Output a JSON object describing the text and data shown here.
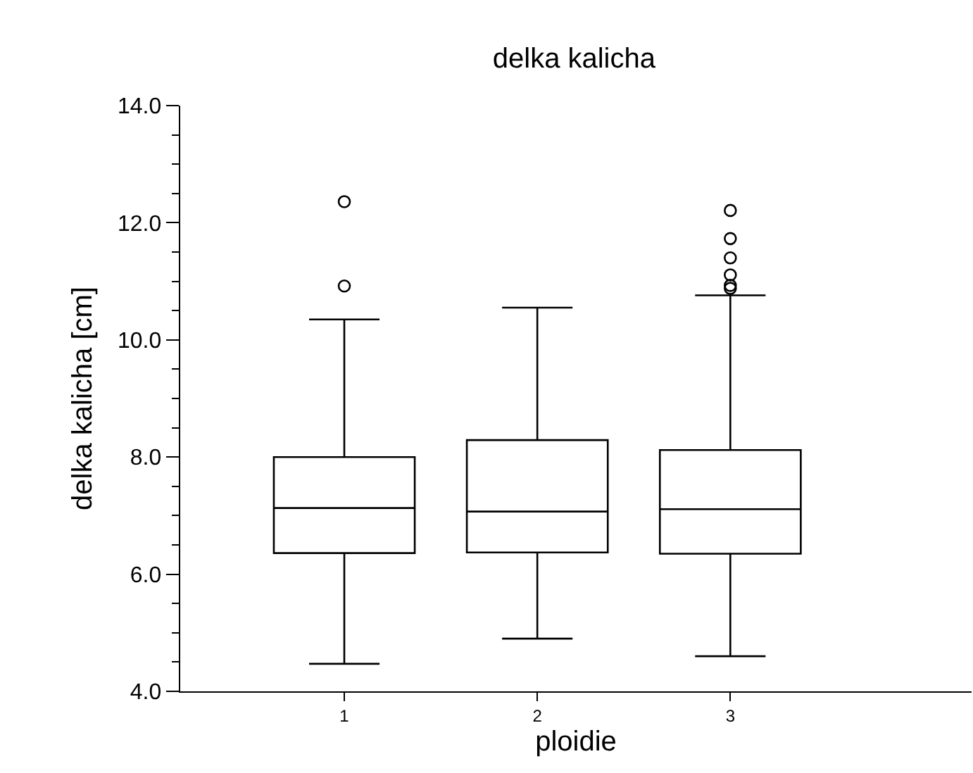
{
  "chart_data": {
    "type": "box",
    "title": "delka kalicha",
    "xlabel": "ploidie",
    "ylabel": "delka kalicha [cm]",
    "categories": [
      "1",
      "2",
      "3"
    ],
    "boxes": [
      {
        "low": 4.47,
        "q1": 6.36,
        "median": 7.13,
        "q3": 8.0,
        "high": 10.35,
        "outliers": [
          10.92,
          12.36
        ]
      },
      {
        "low": 4.9,
        "q1": 6.37,
        "median": 7.07,
        "q3": 8.29,
        "high": 10.55
      },
      {
        "low": 4.6,
        "q1": 6.35,
        "median": 7.11,
        "q3": 8.12,
        "high": 10.76,
        "outliers": [
          10.88,
          10.93,
          11.11,
          11.4,
          11.73,
          12.21
        ]
      }
    ],
    "color": "#000000",
    "ylim": [
      4,
      14
    ],
    "yticks": [
      {
        "value": 4,
        "label": "4.0"
      },
      {
        "value": 6,
        "label": "6.0"
      },
      {
        "value": 8,
        "label": "8.0"
      },
      {
        "value": 10,
        "label": "10.0"
      },
      {
        "value": 12,
        "label": "12.0"
      },
      {
        "value": 14,
        "label": "14.0"
      }
    ]
  }
}
